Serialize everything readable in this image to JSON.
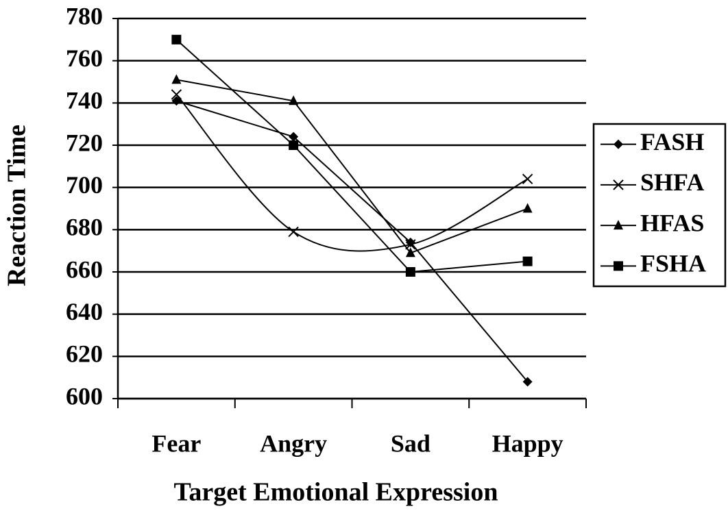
{
  "chart_data": {
    "type": "line",
    "xlabel": "Target Emotional Expression",
    "ylabel": "Reaction Time",
    "categories": [
      "Fear",
      "Angry",
      "Sad",
      "Happy"
    ],
    "series": [
      {
        "name": "FASH",
        "color": "#000000",
        "marker": "diamond",
        "smooth": false,
        "values": [
          741,
          724,
          674,
          608
        ]
      },
      {
        "name": "SHFA",
        "color": "#000000",
        "marker": "x",
        "smooth": true,
        "values": [
          744,
          679,
          673,
          704
        ]
      },
      {
        "name": "HFAS",
        "color": "#000000",
        "marker": "triangle",
        "smooth": false,
        "values": [
          751,
          741,
          669,
          690
        ]
      },
      {
        "name": "FSHA",
        "color": "#000000",
        "marker": "square",
        "smooth": false,
        "values": [
          770,
          720,
          660,
          665
        ]
      }
    ],
    "ylim": [
      600,
      780
    ],
    "yticks": [
      600,
      620,
      640,
      660,
      680,
      700,
      720,
      740,
      760,
      780
    ],
    "grid": true,
    "legend": "right"
  }
}
